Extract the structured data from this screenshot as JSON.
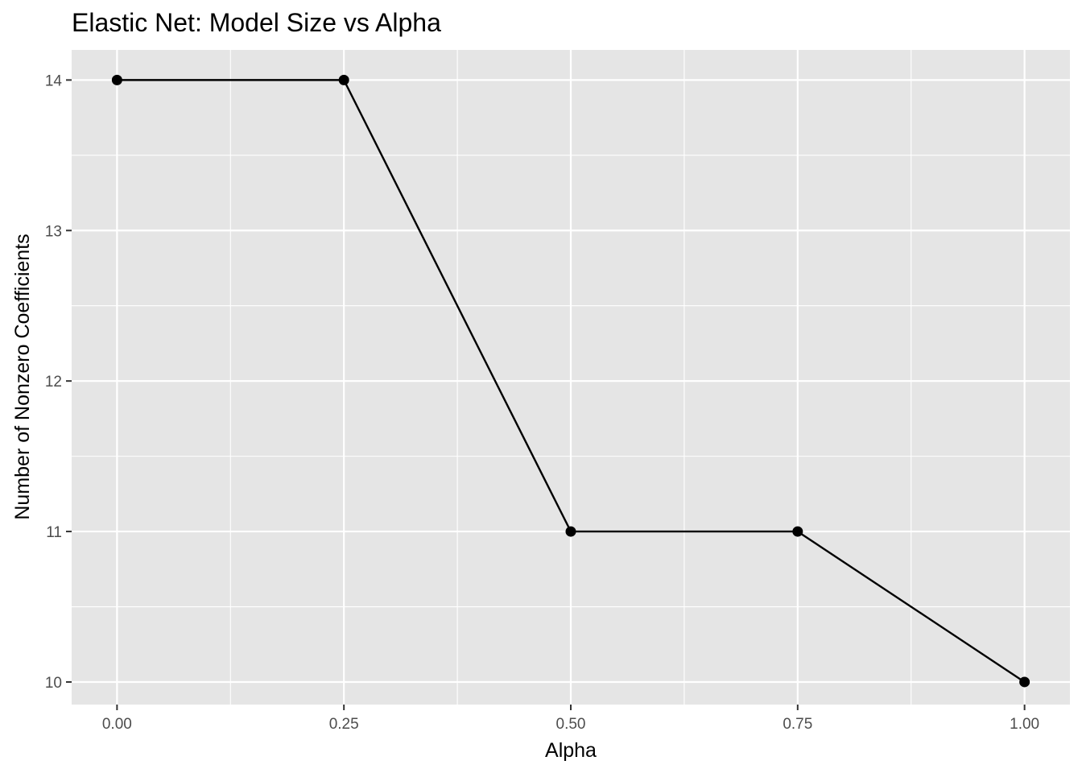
{
  "chart_data": {
    "type": "line",
    "title": "Elastic Net: Model Size vs Alpha",
    "xlabel": "Alpha",
    "ylabel": "Number of Nonzero Coefficients",
    "x": [
      0.0,
      0.25,
      0.5,
      0.75,
      1.0
    ],
    "y": [
      14,
      14,
      11,
      11,
      10
    ],
    "xlim": [
      -0.05,
      1.05
    ],
    "ylim": [
      9.85,
      14.2
    ],
    "x_ticks": [
      0.0,
      0.25,
      0.5,
      0.75,
      1.0
    ],
    "x_tick_labels": [
      "0.00",
      "0.25",
      "0.50",
      "0.75",
      "1.00"
    ],
    "y_ticks": [
      10,
      11,
      12,
      13,
      14
    ],
    "y_tick_labels": [
      "10",
      "11",
      "12",
      "13",
      "14"
    ],
    "grid": true,
    "legend": "none",
    "colors": {
      "panel": "#e5e5e5",
      "grid": "#ffffff",
      "line": "#000000",
      "point": "#000000",
      "tick_text": "#4d4d4d",
      "tick_mark": "#333333"
    }
  }
}
